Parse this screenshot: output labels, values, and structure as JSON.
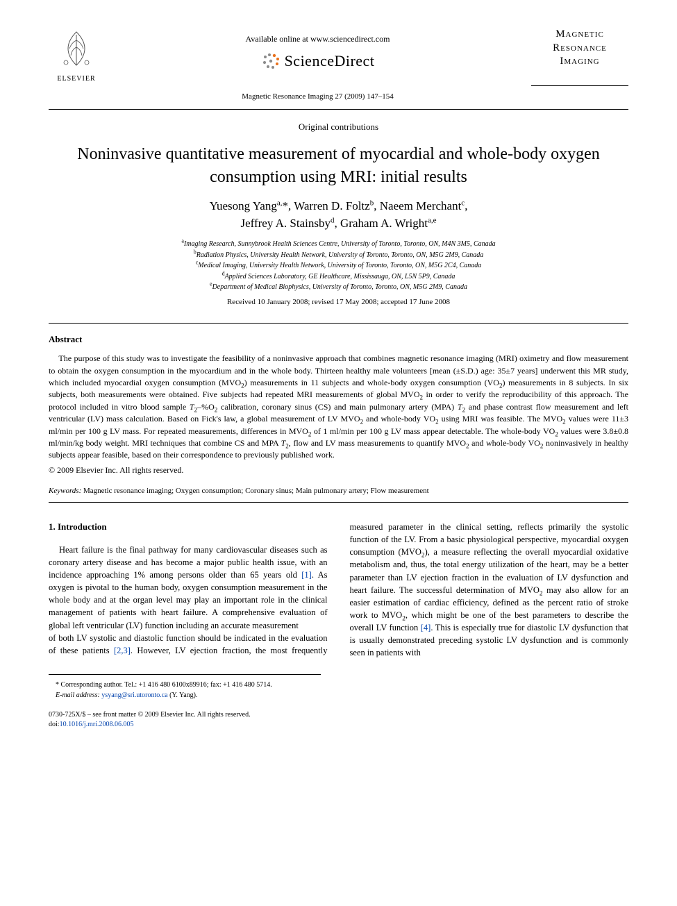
{
  "header": {
    "available_online": "Available online at www.sciencedirect.com",
    "scidirect_brand": "ScienceDirect",
    "journal_ref": "Magnetic Resonance Imaging 27 (2009) 147–154",
    "elsevier_label": "ELSEVIER",
    "journal_box_line1": "Magnetic",
    "journal_box_line2": "Resonance",
    "journal_box_line3": "Imaging"
  },
  "article": {
    "section_label": "Original contributions",
    "title": "Noninvasive quantitative measurement of myocardial and whole-body oxygen consumption using MRI: initial results",
    "authors_html": "Yuesong Yang<sup>a,</sup>*, Warren D. Foltz<sup>b</sup>, Naeem Merchant<sup>c</sup>,<br>Jeffrey A. Stainsby<sup>d</sup>, Graham A. Wright<sup>a,e</sup>",
    "affiliations_html": "<sup>a</sup>Imaging Research, Sunnybrook Health Sciences Centre, University of Toronto, Toronto, ON, M4N 3M5, Canada<br><sup>b</sup>Radiation Physics, University Health Network, University of Toronto, Toronto, ON, M5G 2M9, Canada<br><sup>c</sup>Medical Imaging, University Health Network, University of Toronto, Toronto, ON, M5G 2C4, Canada<br><sup>d</sup>Applied Sciences Laboratory, GE Healthcare, Mississauga, ON, L5N 5P9, Canada<br><sup>e</sup>Department of Medical Biophysics, University of Toronto, Toronto, ON, M5G 2M9, Canada",
    "dates": "Received 10 January 2008; revised 17 May 2008; accepted 17 June 2008"
  },
  "abstract": {
    "heading": "Abstract",
    "text_html": "The purpose of this study was to investigate the feasibility of a noninvasive approach that combines magnetic resonance imaging (MRI) oximetry and flow measurement to obtain the oxygen consumption in the myocardium and in the whole body. Thirteen healthy male volunteers [mean (±S.D.) age: 35±7 years] underwent this MR study, which included myocardial oxygen consumption (MVO<sub>2</sub>) measurements in 11 subjects and whole-body oxygen consumption (VO<sub>2</sub>) measurements in 8 subjects. In six subjects, both measurements were obtained. Five subjects had repeated MRI measurements of global MVO<sub>2</sub> in order to verify the reproducibility of this approach. The protocol included in vitro blood sample <i>T</i><sub>2</sub>–%O<sub>2</sub> calibration, coronary sinus (CS) and main pulmonary artery (MPA) <i>T</i><sub>2</sub> and phase contrast flow measurement and left ventricular (LV) mass calculation. Based on Fick's law, a global measurement of LV MVO<sub>2</sub> and whole-body VO<sub>2</sub> using MRI was feasible. The MVO<sub>2</sub> values were 11±3 ml/min per 100 g LV mass. For repeated measurements, differences in MVO<sub>2</sub> of 1 ml/min per 100 g LV mass appear detectable. The whole-body VO<sub>2</sub> values were 3.8±0.8 ml/min/kg body weight. MRI techniques that combine CS and MPA <i>T</i><sub>2</sub>, flow and LV mass measurements to quantify MVO<sub>2</sub> and whole-body VO<sub>2</sub> noninvasively in healthy subjects appear feasible, based on their correspondence to previously published work.",
    "copyright": "© 2009 Elsevier Inc. All rights reserved."
  },
  "keywords": {
    "label": "Keywords:",
    "text": "Magnetic resonance imaging; Oxygen consumption; Coronary sinus; Main pulmonary artery; Flow measurement"
  },
  "intro": {
    "heading": "1. Introduction",
    "col1_html": "Heart failure is the final pathway for many cardiovascular diseases such as coronary artery disease and has become a major public health issue, with an incidence approaching 1% among persons older than 65 years old <span class=\"cite\">[1]</span>. As oxygen is pivotal to the human body, oxygen consumption measurement in the whole body and at the organ level may play an important role in the clinical management of patients with heart failure. A comprehensive evaluation of global left ventricular (LV) function including an accurate measurement",
    "col2_html": "of both LV systolic and diastolic function should be indicated in the evaluation of these patients <span class=\"cite\">[2,3]</span>. However, LV ejection fraction, the most frequently measured parameter in the clinical setting, reflects primarily the systolic function of the LV. From a basic physiological perspective, myocardial oxygen consumption (MVO<sub>2</sub>), a measure reflecting the overall myocardial oxidative metabolism and, thus, the total energy utilization of the heart, may be a better parameter than LV ejection fraction in the evaluation of LV dysfunction and heart failure. The successful determination of MVO<sub>2</sub> may also allow for an easier estimation of cardiac efficiency, defined as the percent ratio of stroke work to MVO<sub>2</sub>, which might be one of the best parameters to describe the overall LV function <span class=\"cite\">[4]</span>. This is especially true for diastolic LV dysfunction that is usually demonstrated preceding systolic LV dysfunction and is commonly seen in patients with"
  },
  "footnotes": {
    "corr": "* Corresponding author. Tel.: +1 416 480 6100x89916; fax: +1 416 480 5714.",
    "email_label": "E-mail address:",
    "email": "ysyang@sri.utoronto.ca",
    "email_suffix": "(Y. Yang)."
  },
  "doi": {
    "line1": "0730-725X/$ – see front matter © 2009 Elsevier Inc. All rights reserved.",
    "line2_prefix": "doi:",
    "line2_link": "10.1016/j.mri.2008.06.005"
  },
  "colors": {
    "link": "#0645ad",
    "text": "#000000",
    "bg": "#ffffff",
    "sd_orange": "#e9711c",
    "sd_grey": "#8a8a8a"
  }
}
